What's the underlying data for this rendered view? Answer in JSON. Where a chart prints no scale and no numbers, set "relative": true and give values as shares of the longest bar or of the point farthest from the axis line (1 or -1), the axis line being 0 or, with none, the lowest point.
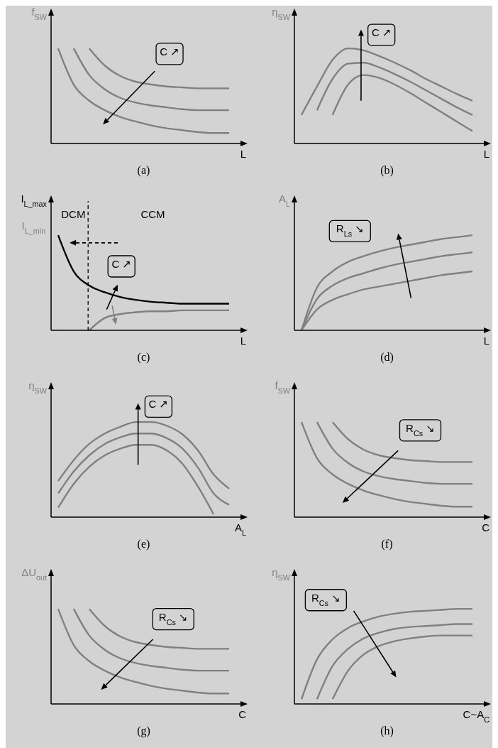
{
  "chart_data": [
    {
      "type": "line",
      "relative": true,
      "title": "(a)",
      "xlabel": "L",
      "ylabel": "f$_{SW}$",
      "categories": [
        null,
        null,
        null,
        null,
        null,
        null,
        null,
        null,
        null,
        null,
        null,
        null
      ],
      "tick_labels": false,
      "marker": "none",
      "legend": false,
      "annotations": [
        "C ↗"
      ],
      "series": [
        {
          "color": "#808080",
          "values": [
            1.0,
            0.62,
            0.45,
            0.35,
            0.28,
            0.23,
            0.19,
            0.16,
            0.14,
            0.12,
            0.11,
            0.11
          ]
        },
        {
          "color": "#808080",
          "values": [
            null,
            1.0,
            0.72,
            0.57,
            0.48,
            0.43,
            0.4,
            0.38,
            0.36,
            0.35,
            0.35,
            0.35
          ]
        },
        {
          "color": "#808080",
          "values": [
            null,
            null,
            1.0,
            0.82,
            0.71,
            0.65,
            0.62,
            0.6,
            0.59,
            0.58,
            0.58,
            0.58
          ]
        }
      ]
    },
    {
      "type": "line",
      "relative": true,
      "title": "(b)",
      "xlabel": "L",
      "ylabel": "η$_{SW}$",
      "categories": [
        null,
        null,
        null,
        null,
        null,
        null,
        null,
        null,
        null,
        null,
        null,
        null
      ],
      "tick_labels": false,
      "marker": "none",
      "legend": false,
      "annotations": [
        "C ↗"
      ],
      "series": [
        {
          "color": "#808080",
          "values": [
            0.3,
            0.6,
            0.88,
            1.0,
            0.98,
            0.92,
            0.85,
            0.77,
            0.68,
            0.6,
            0.52,
            0.45
          ]
        },
        {
          "color": "#808080",
          "values": [
            null,
            0.35,
            0.68,
            0.84,
            0.85,
            0.8,
            0.73,
            0.65,
            0.56,
            0.47,
            0.38,
            0.3
          ]
        },
        {
          "color": "#808080",
          "values": [
            null,
            null,
            0.3,
            0.62,
            0.72,
            0.69,
            0.62,
            0.53,
            0.43,
            0.33,
            0.23,
            0.13
          ]
        }
      ]
    },
    {
      "type": "line",
      "relative": true,
      "title": "(c)",
      "xlabel": "L",
      "ylabel": "I$_{L_max}$",
      "categories": [
        null,
        null,
        null,
        null,
        null,
        null,
        null,
        null,
        null,
        null,
        null,
        null
      ],
      "tick_labels": false,
      "marker": "none",
      "legend": false,
      "annotations": [
        "DCM",
        "CCM",
        "C ↗",
        "I$_{L_min}$"
      ],
      "series": [
        {
          "color": "#000000",
          "values": [
            1.0,
            0.62,
            0.47,
            0.4,
            0.35,
            0.32,
            0.3,
            0.29,
            0.28,
            0.28,
            0.28,
            0.28
          ]
        },
        {
          "color": "#808080",
          "values": [
            null,
            null,
            0,
            0.13,
            0.17,
            0.19,
            0.2,
            0.2,
            0.21,
            0.21,
            0.21,
            0.21
          ]
        }
      ]
    },
    {
      "type": "line",
      "relative": true,
      "title": "(d)",
      "xlabel": "L",
      "ylabel": "A$_{L}$",
      "categories": [
        null,
        null,
        null,
        null,
        null,
        null,
        null,
        null,
        null,
        null,
        null,
        null
      ],
      "tick_labels": false,
      "marker": "none",
      "legend": false,
      "annotations": [
        "R$_{Ls}$ ↘"
      ],
      "series": [
        {
          "color": "#808080",
          "values": [
            0,
            0.45,
            0.62,
            0.72,
            0.78,
            0.83,
            0.87,
            0.9,
            0.93,
            0.96,
            0.98,
            1.0
          ]
        },
        {
          "color": "#808080",
          "values": [
            0,
            0.33,
            0.47,
            0.55,
            0.6,
            0.65,
            0.69,
            0.72,
            0.75,
            0.78,
            0.8,
            0.82
          ]
        },
        {
          "color": "#808080",
          "values": [
            0,
            0.22,
            0.32,
            0.38,
            0.43,
            0.46,
            0.49,
            0.52,
            0.55,
            0.58,
            0.6,
            0.62
          ]
        }
      ]
    },
    {
      "type": "line",
      "relative": true,
      "title": "(e)",
      "xlabel": "A$_{L}$",
      "ylabel": "η$_{SW}$",
      "categories": [
        null,
        null,
        null,
        null,
        null,
        null,
        null,
        null,
        null,
        null,
        null,
        null
      ],
      "tick_labels": false,
      "marker": "none",
      "legend": false,
      "annotations": [
        "C ↗"
      ],
      "series": [
        {
          "color": "#808080",
          "values": [
            0.38,
            0.6,
            0.77,
            0.88,
            0.95,
            1.0,
            1.0,
            0.96,
            0.87,
            0.7,
            0.45,
            0.3
          ]
        },
        {
          "color": "#808080",
          "values": [
            0.25,
            0.48,
            0.65,
            0.77,
            0.84,
            0.88,
            0.88,
            0.83,
            0.72,
            0.52,
            0.25,
            0.13
          ]
        },
        {
          "color": "#808080",
          "values": [
            0.1,
            0.35,
            0.53,
            0.65,
            0.72,
            0.76,
            0.76,
            0.7,
            0.56,
            0.32,
            0.03,
            null
          ]
        }
      ]
    },
    {
      "type": "line",
      "relative": true,
      "title": "(f)",
      "xlabel": "C",
      "ylabel": "f$_{SW}$",
      "categories": [
        null,
        null,
        null,
        null,
        null,
        null,
        null,
        null,
        null,
        null,
        null,
        null
      ],
      "tick_labels": false,
      "marker": "none",
      "legend": false,
      "annotations": [
        "R$_{Cs}$ ↘"
      ],
      "series": [
        {
          "color": "#808080",
          "values": [
            1.0,
            0.62,
            0.45,
            0.35,
            0.28,
            0.23,
            0.19,
            0.16,
            0.14,
            0.12,
            0.11,
            0.11
          ]
        },
        {
          "color": "#808080",
          "values": [
            null,
            1.0,
            0.72,
            0.57,
            0.48,
            0.43,
            0.4,
            0.38,
            0.36,
            0.35,
            0.35,
            0.35
          ]
        },
        {
          "color": "#808080",
          "values": [
            null,
            null,
            1.0,
            0.82,
            0.71,
            0.65,
            0.62,
            0.6,
            0.59,
            0.58,
            0.58,
            0.58
          ]
        }
      ]
    },
    {
      "type": "line",
      "relative": true,
      "title": "(g)",
      "xlabel": "C",
      "ylabel": "ΔU$_{out}$",
      "categories": [
        null,
        null,
        null,
        null,
        null,
        null,
        null,
        null,
        null,
        null,
        null,
        null
      ],
      "tick_labels": false,
      "marker": "none",
      "legend": false,
      "annotations": [
        "R$_{Cs}$ ↘"
      ],
      "series": [
        {
          "color": "#808080",
          "values": [
            1.0,
            0.62,
            0.45,
            0.35,
            0.28,
            0.23,
            0.19,
            0.16,
            0.14,
            0.12,
            0.11,
            0.11
          ]
        },
        {
          "color": "#808080",
          "values": [
            null,
            1.0,
            0.72,
            0.57,
            0.48,
            0.43,
            0.4,
            0.38,
            0.36,
            0.35,
            0.35,
            0.35
          ]
        },
        {
          "color": "#808080",
          "values": [
            null,
            null,
            1.0,
            0.82,
            0.71,
            0.65,
            0.62,
            0.6,
            0.59,
            0.58,
            0.58,
            0.58
          ]
        }
      ]
    },
    {
      "type": "line",
      "relative": true,
      "title": "(h)",
      "xlabel": "C~A$_{C}$",
      "ylabel": "η$_{SW}$",
      "categories": [
        null,
        null,
        null,
        null,
        null,
        null,
        null,
        null,
        null,
        null,
        null,
        null
      ],
      "tick_labels": false,
      "marker": "none",
      "legend": false,
      "annotations": [
        "R$_{Cs}$ ↘"
      ],
      "series": [
        {
          "color": "#808080",
          "values": [
            0.05,
            0.47,
            0.68,
            0.8,
            0.87,
            0.92,
            0.95,
            0.97,
            0.98,
            0.99,
            1.0,
            1.0
          ]
        },
        {
          "color": "#808080",
          "values": [
            null,
            0.05,
            0.4,
            0.58,
            0.69,
            0.75,
            0.79,
            0.81,
            0.82,
            0.83,
            0.84,
            0.84
          ]
        },
        {
          "color": "#808080",
          "values": [
            null,
            null,
            0.05,
            0.35,
            0.52,
            0.61,
            0.66,
            0.69,
            0.71,
            0.72,
            0.72,
            0.72
          ]
        }
      ]
    }
  ]
}
